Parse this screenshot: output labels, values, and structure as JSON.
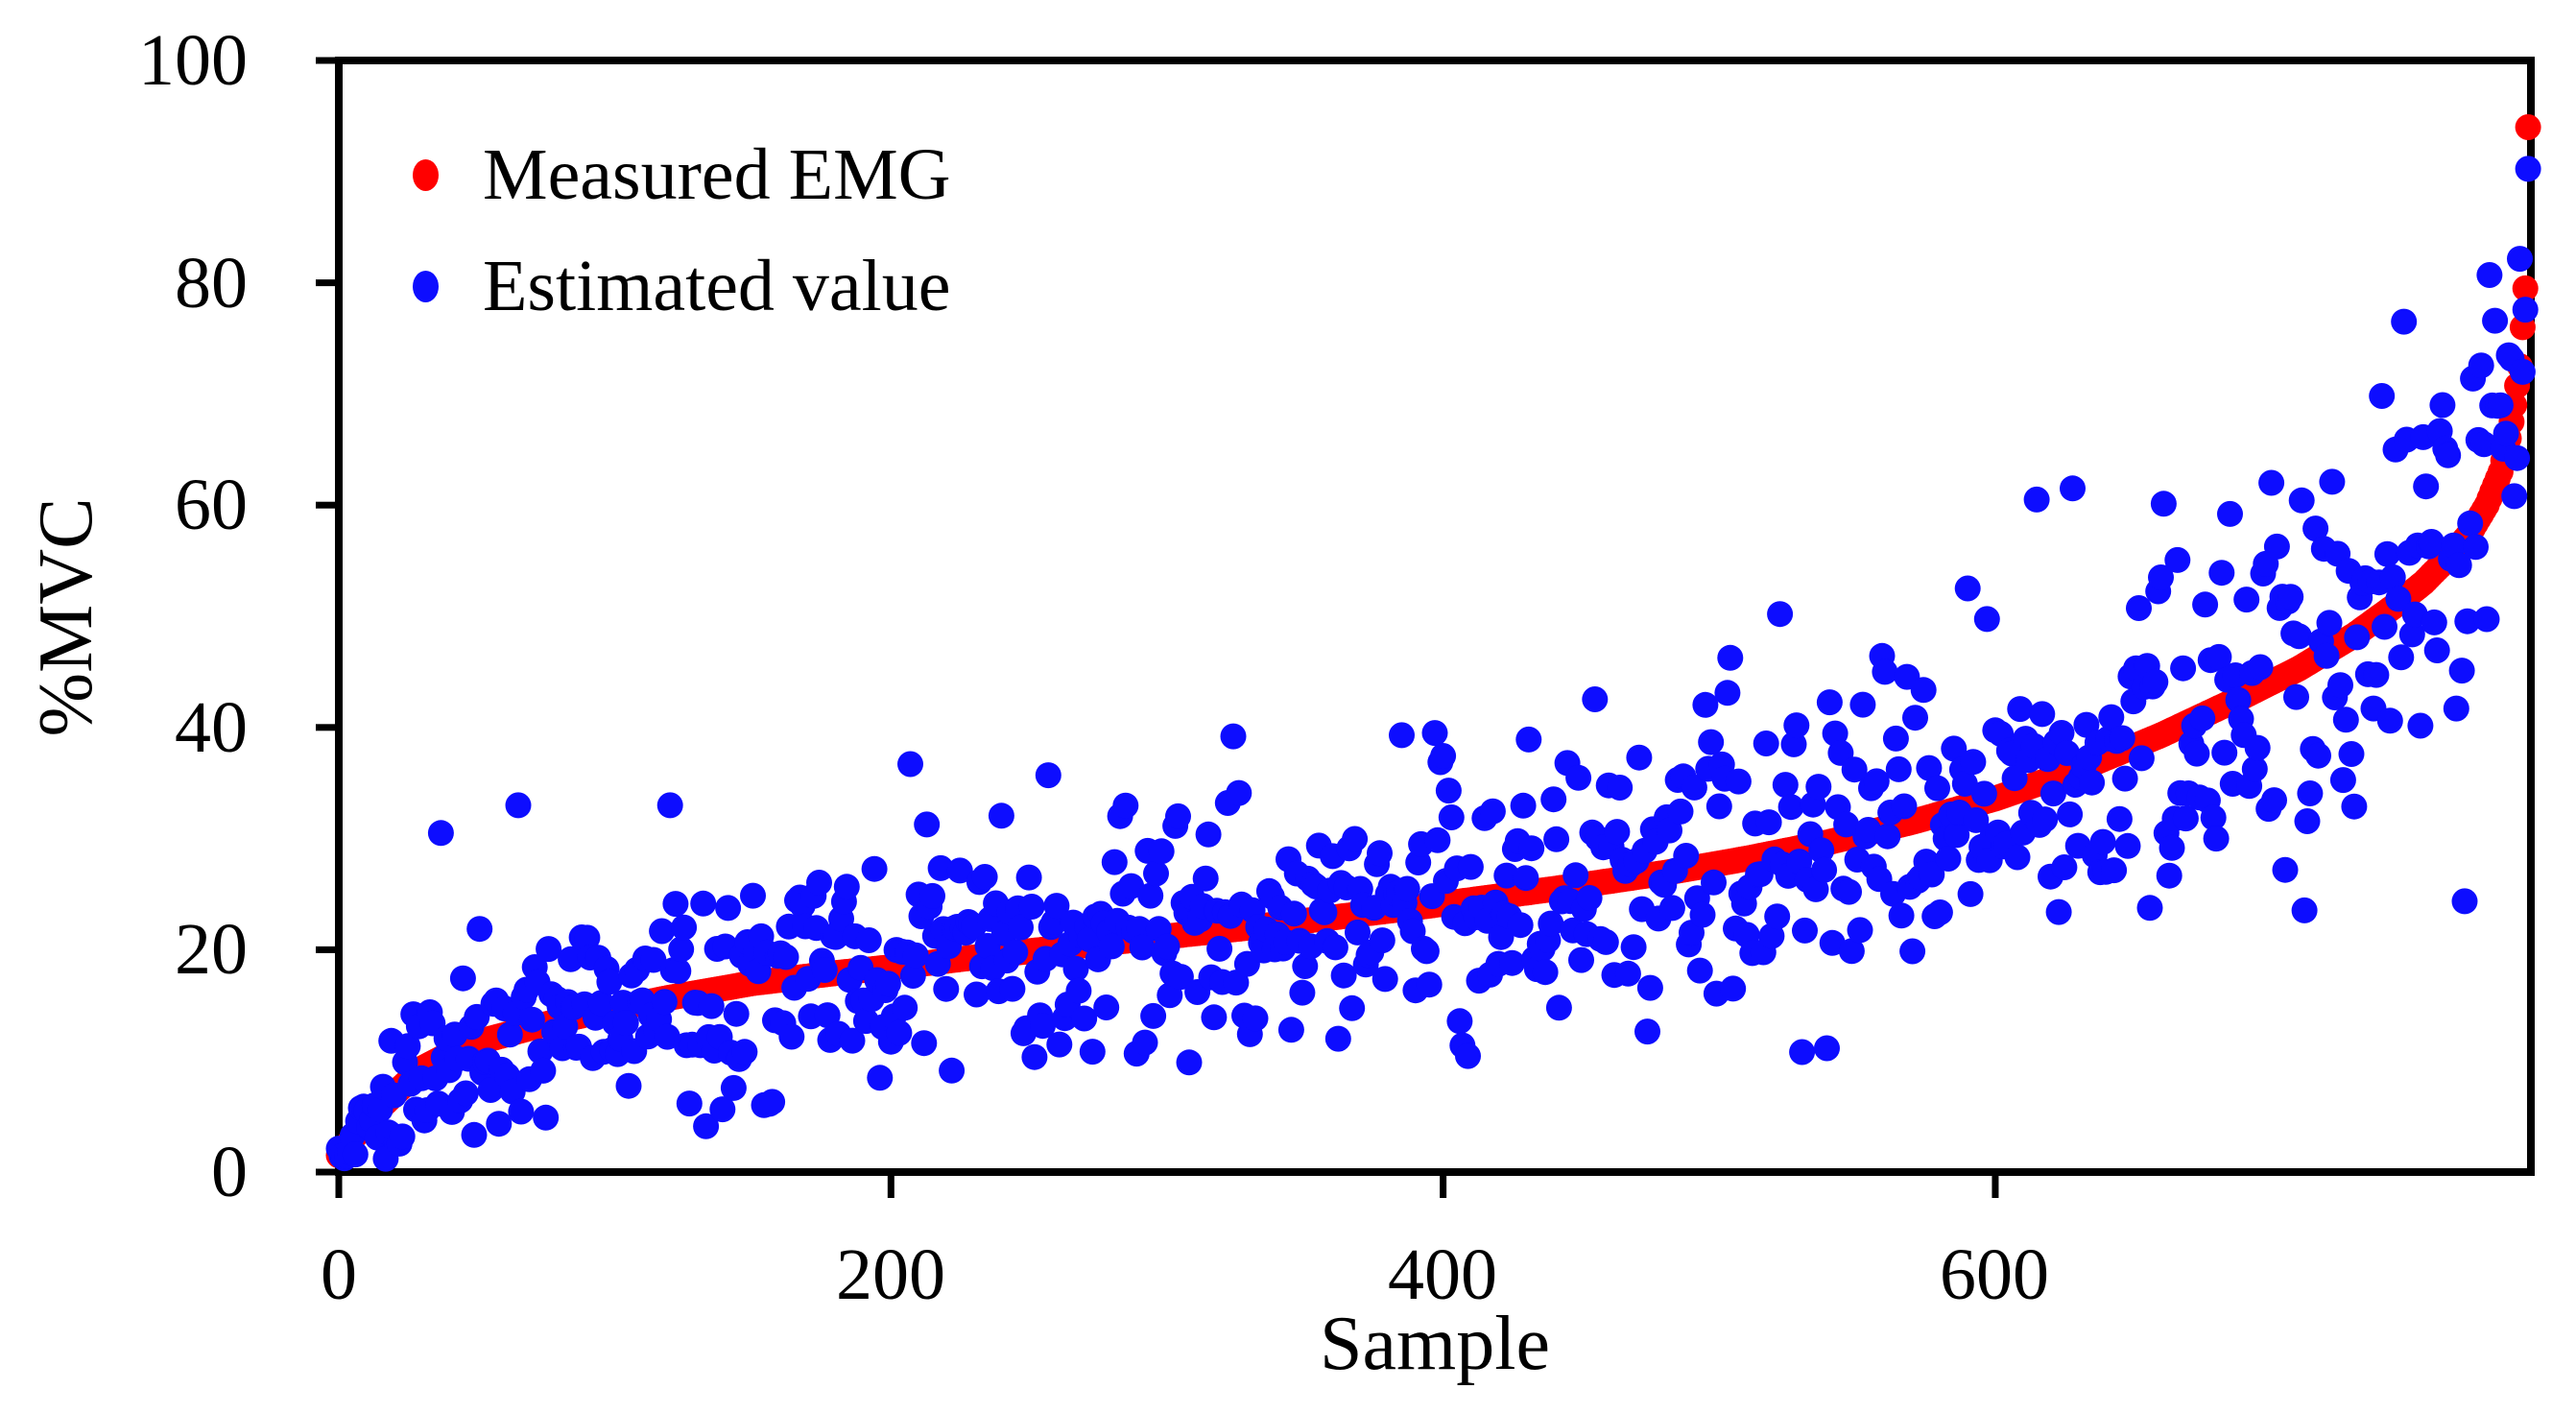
{
  "chart_data": {
    "type": "scatter",
    "title": "",
    "xlabel": "Sample",
    "ylabel": "%MVC",
    "xlim": [
      0,
      794
    ],
    "ylim": [
      0,
      100
    ],
    "x_ticks": [
      0,
      200,
      400,
      600
    ],
    "x_tick_labels": [
      "0",
      "200",
      "400",
      "600"
    ],
    "y_ticks": [
      100,
      80,
      60,
      40,
      20,
      0
    ],
    "y_tick_labels": [
      "100",
      "80",
      "60",
      "40",
      "20",
      "0"
    ],
    "grid": false,
    "legend_position": "upper-left-inside",
    "axis_color": "#000000",
    "background_color": "#ffffff",
    "marker_radius_px": 13.5,
    "legend": [
      {
        "name": "Measured EMG",
        "color": "#ff0000"
      },
      {
        "name": "Estimated value",
        "color": "#0d0dff"
      }
    ],
    "series": [
      {
        "name": "Measured EMG",
        "color": "#ff0000",
        "role": "sorted-measured-curve",
        "curve_landmarks": [
          [
            0,
            1.5
          ],
          [
            5,
            3.0
          ],
          [
            10,
            4.5
          ],
          [
            15,
            5.8
          ],
          [
            20,
            7.0
          ],
          [
            30,
            9.3
          ],
          [
            40,
            10.6
          ],
          [
            55,
            12.0
          ],
          [
            70,
            13.0
          ],
          [
            90,
            14.2
          ],
          [
            120,
            15.7
          ],
          [
            150,
            17.0
          ],
          [
            180,
            17.9
          ],
          [
            210,
            18.7
          ],
          [
            240,
            19.6
          ],
          [
            270,
            20.4
          ],
          [
            300,
            21.2
          ],
          [
            330,
            22.0
          ],
          [
            360,
            22.9
          ],
          [
            390,
            23.8
          ],
          [
            420,
            24.8
          ],
          [
            450,
            25.8
          ],
          [
            480,
            26.9
          ],
          [
            510,
            28.2
          ],
          [
            540,
            29.7
          ],
          [
            570,
            31.5
          ],
          [
            600,
            33.6
          ],
          [
            630,
            36.2
          ],
          [
            660,
            39.3
          ],
          [
            690,
            42.8
          ],
          [
            710,
            45.3
          ],
          [
            730,
            48.3
          ],
          [
            745,
            51.0
          ],
          [
            755,
            53.0
          ],
          [
            765,
            55.5
          ],
          [
            772,
            57.5
          ],
          [
            778,
            60.0
          ],
          [
            783,
            63.0
          ],
          [
            786,
            66.0
          ],
          [
            788,
            69.0
          ],
          [
            790,
            72.5
          ],
          [
            791,
            76.0
          ],
          [
            792,
            79.5
          ],
          [
            793,
            94.0
          ]
        ]
      },
      {
        "name": "Estimated value",
        "color": "#0d0dff",
        "role": "estimate-scatter",
        "noise": {
          "seed": 1337,
          "sd_base": 4.3,
          "sd_growth": 3.6,
          "sd_exp": 1.3,
          "ramp_len": 40,
          "min_value": 1.2,
          "max_value": 96
        },
        "outliers": [
          [
            37,
            30.5
          ],
          [
            65,
            33.0
          ],
          [
            120,
            33.0
          ],
          [
            207,
            36.7
          ],
          [
            257,
            35.7
          ],
          [
            304,
            32.0
          ],
          [
            322,
            33.2
          ],
          [
            385,
            39.3
          ],
          [
            397,
            39.5
          ],
          [
            445,
            36.8
          ],
          [
            522,
            50.2
          ],
          [
            560,
            45.0
          ],
          [
            590,
            52.5
          ],
          [
            615,
            60.5
          ],
          [
            628,
            61.5
          ],
          [
            660,
            53.5
          ],
          [
            700,
            62.0
          ],
          [
            745,
            65.0
          ],
          [
            762,
            69.0
          ],
          [
            779,
            80.7
          ],
          [
            212,
            11.6
          ],
          [
            330,
            12.4
          ],
          [
            345,
            12.8
          ],
          [
            505,
            16.5
          ],
          [
            640,
            27.0
          ],
          [
            680,
            30.0
          ]
        ]
      }
    ]
  }
}
